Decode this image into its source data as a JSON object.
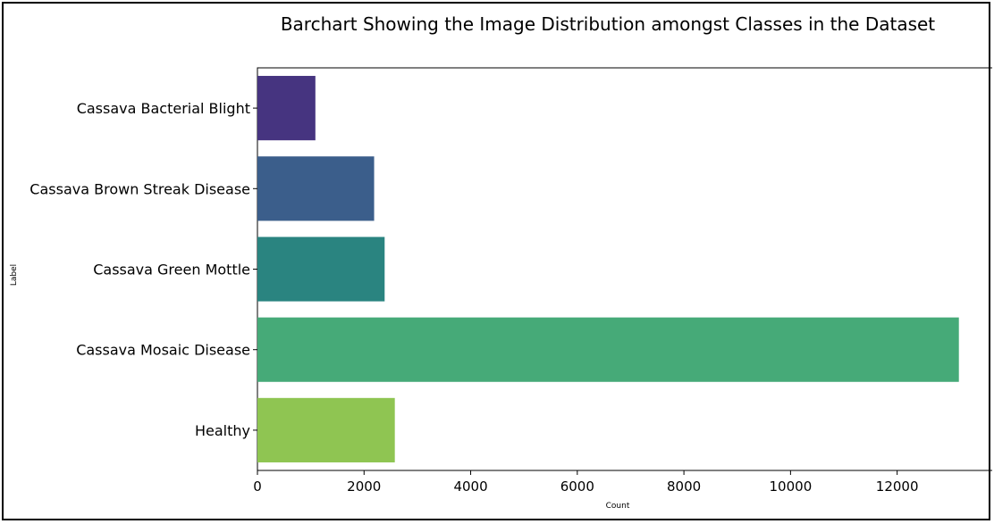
{
  "chart_data": {
    "type": "bar",
    "orientation": "horizontal",
    "title": "Barchart Showing the Image Distribution amongst Classes in the Dataset",
    "xlabel": "Count",
    "ylabel": "Label",
    "categories": [
      "Cassava Bacterial Blight",
      "Cassava Brown Streak Disease",
      "Cassava Green Mottle",
      "Cassava Mosaic Disease",
      "Healthy"
    ],
    "values": [
      1087,
      2189,
      2386,
      13158,
      2577
    ],
    "colors": [
      "#463480",
      "#3b5e8b",
      "#2a8480",
      "#46aa78",
      "#8fc552"
    ],
    "xlim": [
      0,
      13800
    ],
    "xticks": [
      0,
      2000,
      4000,
      6000,
      8000,
      10000,
      12000
    ],
    "xtick_labels": [
      "0",
      "2000",
      "4000",
      "6000",
      "8000",
      "10000",
      "12000"
    ],
    "grid": false,
    "legend": "none"
  }
}
